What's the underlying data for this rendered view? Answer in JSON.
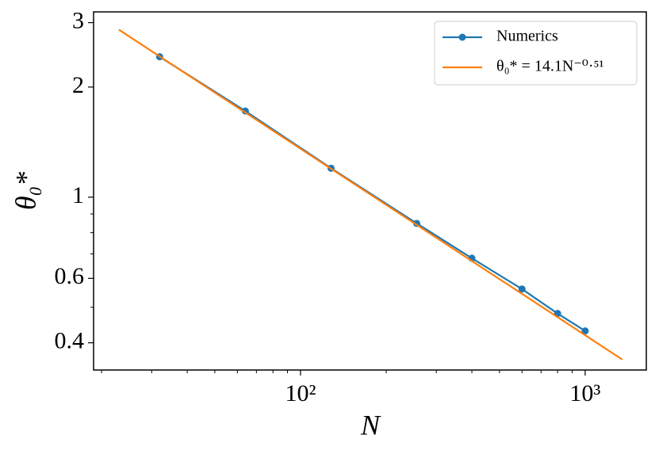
{
  "chart_data": {
    "type": "line",
    "xlabel": "N",
    "ylabel": "θ₀*",
    "xscale": "log",
    "yscale": "log",
    "xlim": [
      18.75,
      1640
    ],
    "ylim": [
      0.337,
      3.21
    ],
    "xticks": [
      {
        "value": 100,
        "label": "10²"
      },
      {
        "value": 1000,
        "label": "10³"
      }
    ],
    "xminorticks": [
      20,
      30,
      40,
      50,
      60,
      70,
      80,
      90,
      200,
      300,
      400,
      500,
      600,
      700,
      800,
      900
    ],
    "yticks": [
      0.4,
      0.6,
      1,
      2,
      3
    ],
    "yminorticks": [
      0.5,
      0.7,
      0.8,
      0.9
    ],
    "legend": "upper right",
    "series": [
      {
        "name": "Numerics",
        "color": "#1f77b4",
        "marker": "o",
        "x": [
          32,
          64,
          128,
          256,
          400,
          600,
          800,
          1000
        ],
        "values": [
          2.42,
          1.72,
          1.2,
          0.848,
          0.681,
          0.561,
          0.481,
          0.431
        ]
      },
      {
        "name": "θ₀* = 14.1N⁻⁰·⁵¹",
        "color": "#ff7f0e",
        "x": [
          23,
          1350
        ],
        "values": [
          2.87,
          0.36
        ]
      }
    ]
  }
}
